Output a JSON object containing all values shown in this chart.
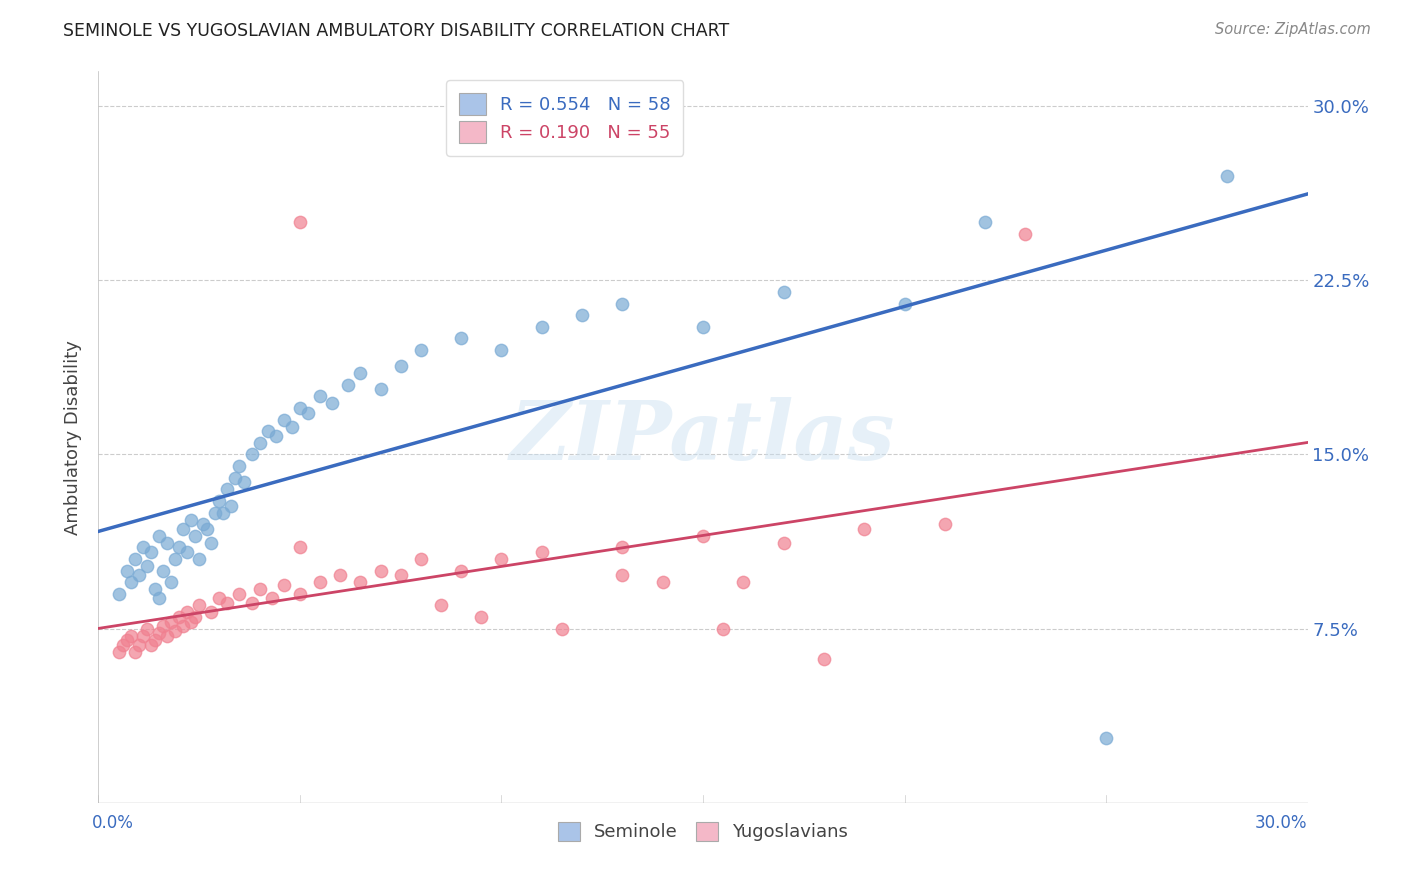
{
  "title": "SEMINOLE VS YUGOSLAVIAN AMBULATORY DISABILITY CORRELATION CHART",
  "source": "Source: ZipAtlas.com",
  "ylabel": "Ambulatory Disability",
  "yticks": [
    "7.5%",
    "15.0%",
    "22.5%",
    "30.0%"
  ],
  "ytick_vals": [
    0.075,
    0.15,
    0.225,
    0.3
  ],
  "xlim": [
    0.0,
    0.3
  ],
  "ylim": [
    0.0,
    0.315
  ],
  "watermark": "ZIPatlas",
  "legend_seminole": "R = 0.554   N = 58",
  "legend_yugoslav": "R = 0.190   N = 55",
  "legend_seminole_color": "#aac4e8",
  "legend_yugoslav_color": "#f4b8c8",
  "seminole_color": "#7aaad4",
  "yugoslavian_color": "#f08090",
  "line_blue": "#3a6bbf",
  "line_pink": "#cc4466",
  "seminole_x": [
    0.005,
    0.007,
    0.008,
    0.009,
    0.01,
    0.011,
    0.012,
    0.013,
    0.014,
    0.015,
    0.015,
    0.016,
    0.017,
    0.018,
    0.019,
    0.02,
    0.021,
    0.022,
    0.023,
    0.024,
    0.025,
    0.026,
    0.027,
    0.028,
    0.029,
    0.03,
    0.031,
    0.032,
    0.033,
    0.034,
    0.035,
    0.036,
    0.038,
    0.04,
    0.042,
    0.044,
    0.046,
    0.048,
    0.05,
    0.052,
    0.055,
    0.058,
    0.062,
    0.065,
    0.07,
    0.075,
    0.08,
    0.09,
    0.1,
    0.11,
    0.12,
    0.13,
    0.15,
    0.17,
    0.2,
    0.22,
    0.25,
    0.28
  ],
  "seminole_y": [
    0.09,
    0.1,
    0.095,
    0.105,
    0.098,
    0.11,
    0.102,
    0.108,
    0.092,
    0.115,
    0.088,
    0.1,
    0.112,
    0.095,
    0.105,
    0.11,
    0.118,
    0.108,
    0.122,
    0.115,
    0.105,
    0.12,
    0.118,
    0.112,
    0.125,
    0.13,
    0.125,
    0.135,
    0.128,
    0.14,
    0.145,
    0.138,
    0.15,
    0.155,
    0.16,
    0.158,
    0.165,
    0.162,
    0.17,
    0.168,
    0.175,
    0.172,
    0.18,
    0.185,
    0.178,
    0.188,
    0.195,
    0.2,
    0.195,
    0.205,
    0.21,
    0.215,
    0.205,
    0.22,
    0.215,
    0.25,
    0.028,
    0.27
  ],
  "yugoslavian_x": [
    0.005,
    0.006,
    0.007,
    0.008,
    0.009,
    0.01,
    0.011,
    0.012,
    0.013,
    0.014,
    0.015,
    0.016,
    0.017,
    0.018,
    0.019,
    0.02,
    0.021,
    0.022,
    0.023,
    0.024,
    0.025,
    0.028,
    0.03,
    0.032,
    0.035,
    0.038,
    0.04,
    0.043,
    0.046,
    0.05,
    0.055,
    0.06,
    0.065,
    0.07,
    0.075,
    0.08,
    0.09,
    0.1,
    0.11,
    0.13,
    0.15,
    0.17,
    0.19,
    0.21,
    0.23,
    0.155,
    0.05,
    0.085,
    0.095,
    0.115,
    0.13,
    0.14,
    0.16,
    0.05,
    0.18
  ],
  "yugoslavian_y": [
    0.065,
    0.068,
    0.07,
    0.072,
    0.065,
    0.068,
    0.072,
    0.075,
    0.068,
    0.07,
    0.073,
    0.076,
    0.072,
    0.078,
    0.074,
    0.08,
    0.076,
    0.082,
    0.078,
    0.08,
    0.085,
    0.082,
    0.088,
    0.086,
    0.09,
    0.086,
    0.092,
    0.088,
    0.094,
    0.09,
    0.095,
    0.098,
    0.095,
    0.1,
    0.098,
    0.105,
    0.1,
    0.105,
    0.108,
    0.11,
    0.115,
    0.112,
    0.118,
    0.12,
    0.245,
    0.075,
    0.11,
    0.085,
    0.08,
    0.075,
    0.098,
    0.095,
    0.095,
    0.25,
    0.062
  ],
  "background_color": "#ffffff",
  "grid_color": "#cccccc"
}
